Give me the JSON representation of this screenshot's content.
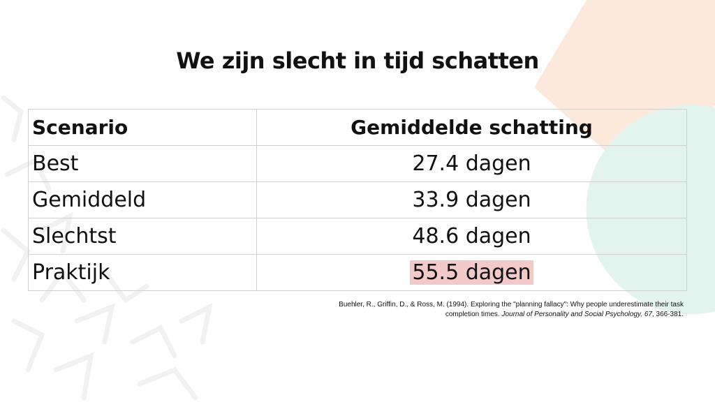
{
  "slide": {
    "title": "We zijn slecht in tijd schatten",
    "table": {
      "headers": [
        "Scenario",
        "Gemiddelde schatting"
      ],
      "rows": [
        {
          "scenario": "Best",
          "estimate": "27.4 dagen"
        },
        {
          "scenario": "Gemiddeld",
          "estimate": "33.9 dagen"
        },
        {
          "scenario": "Slechtst",
          "estimate": "48.6 dagen"
        },
        {
          "scenario": "Praktijk",
          "estimate": "55.5 dagen",
          "highlight": true
        }
      ]
    },
    "citation": {
      "text": "Buehler, R., Griffin, D., & Ross, M. (1994). Exploring the \"planning fallacy\": Why people underestimate their task completion times. ",
      "journal": "Journal of Personality and Social Psychology, 67",
      "pages": ", 366-381."
    },
    "colors": {
      "highlight": "#f2caca",
      "accent_peach": "#fde9db",
      "accent_mint": "#e3f4ee"
    }
  }
}
